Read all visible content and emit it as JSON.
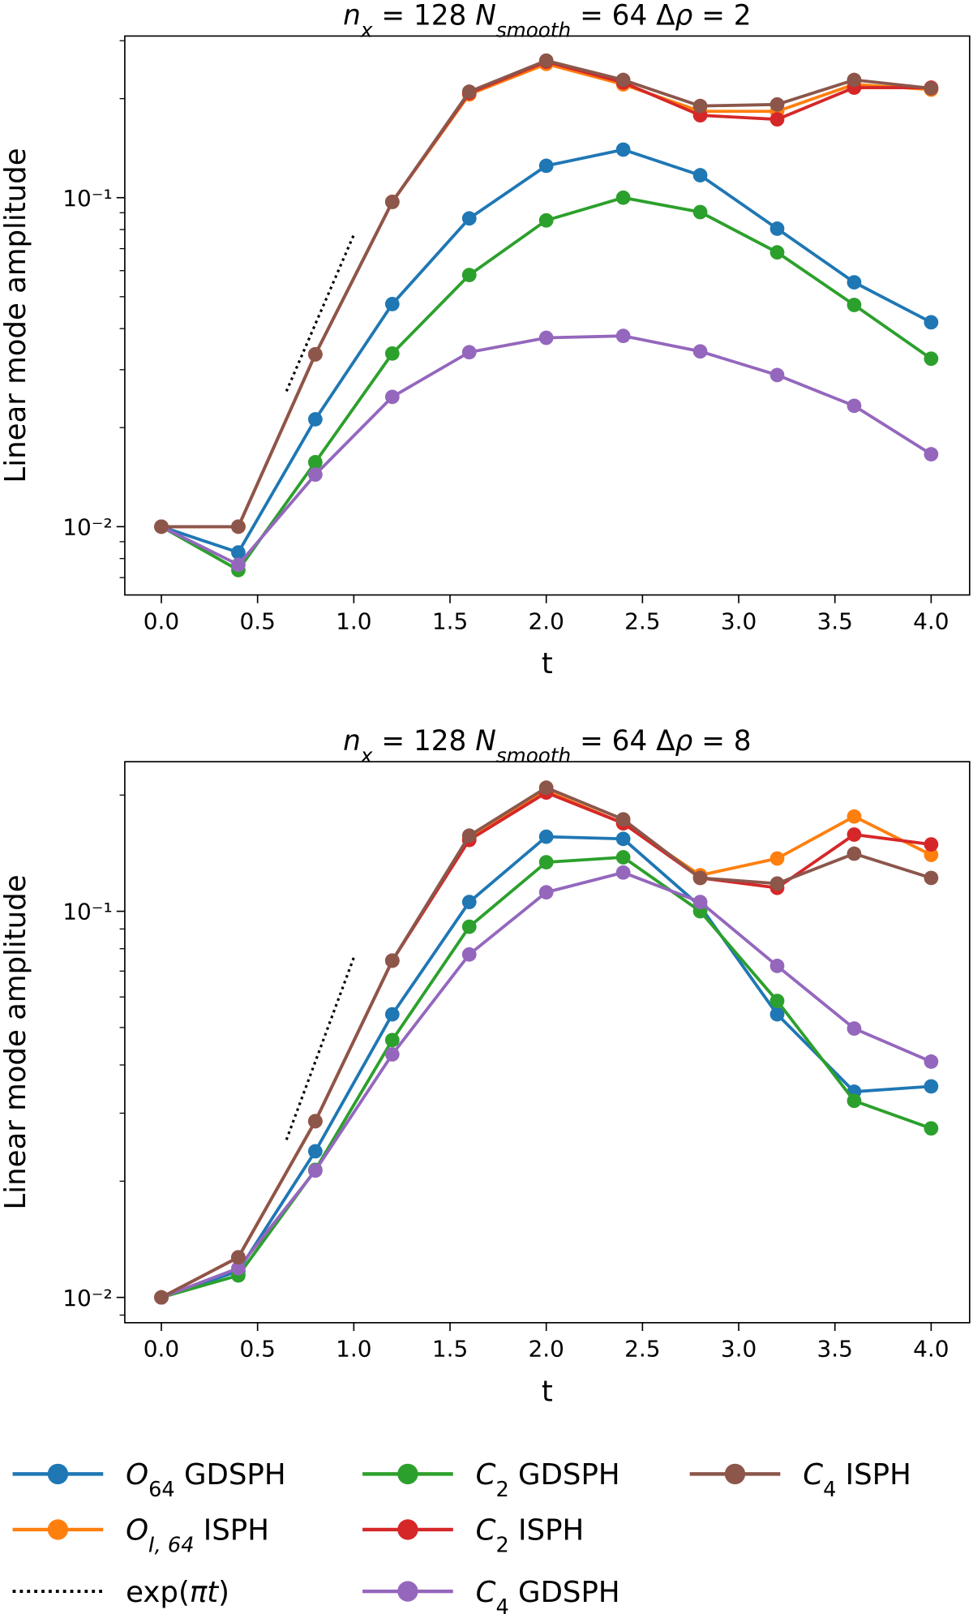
{
  "chart_data": [
    {
      "type": "line",
      "title": [
        {
          "text": "n",
          "italic": true
        },
        {
          "text": "x",
          "sub": true,
          "italic": true
        },
        {
          "text": " = 128 "
        },
        {
          "text": "N",
          "italic": true
        },
        {
          "text": "smooth",
          "sub": true,
          "italic": true
        },
        {
          "text": " = 64 Δ"
        },
        {
          "text": "ρ",
          "italic": true
        },
        {
          "text": " = 2"
        }
      ],
      "xlabel": "t",
      "ylabel": "Linear mode amplitude",
      "log_y": true,
      "x": [
        0,
        0.4,
        0.8,
        1.2,
        1.6,
        2.0,
        2.4,
        2.8,
        3.2,
        3.6,
        4.0
      ],
      "xlim": [
        -0.19,
        4.2
      ],
      "xticks": [
        {
          "value": 0,
          "label": "0.0"
        },
        0.5,
        {
          "value": 1,
          "label": "1.0"
        },
        1.5,
        {
          "value": 2,
          "label": "2.0"
        },
        2.5,
        {
          "value": 3,
          "label": "3.0"
        },
        3.5,
        {
          "value": 4,
          "label": "4.0"
        }
      ],
      "ylim": [
        0.0062,
        0.31
      ],
      "yticks": [
        {
          "value": 0.01,
          "label": "10⁻²"
        },
        {
          "value": 0.1,
          "label": "10⁻¹"
        }
      ],
      "yminorticks": [
        0.007,
        0.008,
        0.009,
        0.02,
        0.03,
        0.04,
        0.05,
        0.06,
        0.07,
        0.08,
        0.09,
        0.2,
        0.3
      ],
      "series": [
        {
          "color": "#1f77b4",
          "values": [
            0.01,
            0.00835,
            0.0212,
            0.0475,
            0.0865,
            0.125,
            0.14,
            0.117,
            0.0805,
            0.0553,
            0.0418
          ]
        },
        {
          "color": "#ff7f0e",
          "values": [
            0.01,
            0.01,
            0.0334,
            0.0971,
            0.206,
            0.255,
            0.221,
            0.183,
            0.183,
            0.221,
            0.213
          ]
        },
        {
          "color": "#2ca02c",
          "values": [
            0.01,
            0.00738,
            0.0157,
            0.0336,
            0.0582,
            0.0853,
            0.1,
            0.0904,
            0.0682,
            0.0472,
            0.0324
          ]
        },
        {
          "color": "#d62728",
          "values": [
            0.01,
            0.01,
            0.0334,
            0.0971,
            0.208,
            0.259,
            0.224,
            0.178,
            0.173,
            0.216,
            0.216
          ]
        },
        {
          "color": "#9467bd",
          "values": [
            0.01,
            0.00766,
            0.0144,
            0.0248,
            0.0339,
            0.0375,
            0.038,
            0.0341,
            0.0289,
            0.0233,
            0.0166
          ]
        },
        {
          "color": "#8c564b",
          "values": [
            0.01,
            0.01,
            0.0334,
            0.0971,
            0.21,
            0.261,
            0.228,
            0.19,
            0.192,
            0.228,
            0.215
          ]
        },
        {
          "color": "#000000",
          "style": "dotted",
          "x": [
            0.65,
            1.0
          ],
          "values": [
            0.0258,
            0.0771
          ]
        }
      ]
    },
    {
      "type": "line",
      "title": [
        {
          "text": "n",
          "italic": true
        },
        {
          "text": "x",
          "sub": true,
          "italic": true
        },
        {
          "text": " = 128 "
        },
        {
          "text": "N",
          "italic": true
        },
        {
          "text": "smooth",
          "sub": true,
          "italic": true
        },
        {
          "text": " = 64 Δ"
        },
        {
          "text": "ρ",
          "italic": true
        },
        {
          "text": " = 8"
        }
      ],
      "xlabel": "t",
      "ylabel": "Linear mode amplitude",
      "log_y": true,
      "x": [
        0,
        0.4,
        0.8,
        1.2,
        1.6,
        2.0,
        2.4,
        2.8,
        3.2,
        3.6,
        4.0
      ],
      "xlim": [
        -0.19,
        4.2
      ],
      "xticks": [
        {
          "value": 0,
          "label": "0.0"
        },
        0.5,
        {
          "value": 1,
          "label": "1.0"
        },
        1.5,
        {
          "value": 2,
          "label": "2.0"
        },
        2.5,
        {
          "value": 3,
          "label": "3.0"
        },
        3.5,
        {
          "value": 4,
          "label": "4.0"
        }
      ],
      "ylim": [
        0.0086,
        0.244
      ],
      "yticks": [
        {
          "value": 0.01,
          "label": "10⁻²"
        },
        {
          "value": 0.1,
          "label": "10⁻¹"
        }
      ],
      "yminorticks": [
        0.009,
        0.02,
        0.03,
        0.04,
        0.05,
        0.06,
        0.07,
        0.08,
        0.09,
        0.2
      ],
      "series": [
        {
          "color": "#1f77b4",
          "values": [
            0.01,
            0.0117,
            0.0239,
            0.0541,
            0.1057,
            0.156,
            0.154,
            0.103,
            0.0541,
            0.0341,
            0.0352
          ]
        },
        {
          "color": "#ff7f0e",
          "values": [
            0.01,
            0.0127,
            0.0286,
            0.0745,
            0.155,
            0.205,
            0.169,
            0.124,
            0.137,
            0.176,
            0.14
          ]
        },
        {
          "color": "#2ca02c",
          "values": [
            0.01,
            0.0114,
            0.0214,
            0.0464,
            0.0912,
            0.134,
            0.138,
            0.1,
            0.0586,
            0.0323,
            0.0274
          ]
        },
        {
          "color": "#d62728",
          "values": [
            0.01,
            0.0127,
            0.0286,
            0.0745,
            0.153,
            0.203,
            0.169,
            0.122,
            0.115,
            0.158,
            0.149
          ]
        },
        {
          "color": "#9467bd",
          "values": [
            0.01,
            0.0119,
            0.0213,
            0.0426,
            0.0773,
            0.112,
            0.126,
            0.1057,
            0.0722,
            0.0497,
            0.0408
          ]
        },
        {
          "color": "#8c564b",
          "values": [
            0.01,
            0.0127,
            0.0286,
            0.0745,
            0.157,
            0.209,
            0.173,
            0.122,
            0.118,
            0.141,
            0.122
          ]
        },
        {
          "color": "#000000",
          "style": "dotted",
          "x": [
            0.65,
            1.0
          ],
          "values": [
            0.0256,
            0.0759
          ]
        }
      ]
    }
  ],
  "legend": {
    "columns": 3,
    "entries": [
      {
        "color": "#1f77b4",
        "name": [
          {
            "text": "O",
            "italic": true
          },
          {
            "text": "64",
            "sub": true
          },
          {
            "text": " GDSPH"
          }
        ]
      },
      {
        "color": "#ff7f0e",
        "name": [
          {
            "text": "O",
            "italic": true
          },
          {
            "text": "I, 64",
            "sub": true,
            "italic": true
          },
          {
            "text": " ISPH"
          }
        ]
      },
      {
        "color": "#000000",
        "style": "dotted",
        "name": [
          {
            "text": "exp("
          },
          {
            "text": "πt",
            "italic": true
          },
          {
            "text": ")"
          }
        ]
      },
      {
        "color": "#2ca02c",
        "name": [
          {
            "text": "C",
            "italic": true
          },
          {
            "text": "2",
            "sub": true
          },
          {
            "text": " GDSPH"
          }
        ]
      },
      {
        "color": "#d62728",
        "name": [
          {
            "text": "C",
            "italic": true
          },
          {
            "text": "2",
            "sub": true
          },
          {
            "text": " ISPH"
          }
        ]
      },
      {
        "color": "#9467bd",
        "name": [
          {
            "text": "C",
            "italic": true
          },
          {
            "text": "4",
            "sub": true
          },
          {
            "text": " GDSPH"
          }
        ]
      },
      {
        "color": "#8c564b",
        "name": [
          {
            "text": "C",
            "italic": true
          },
          {
            "text": "4",
            "sub": true
          },
          {
            "text": " ISPH"
          }
        ]
      }
    ]
  }
}
